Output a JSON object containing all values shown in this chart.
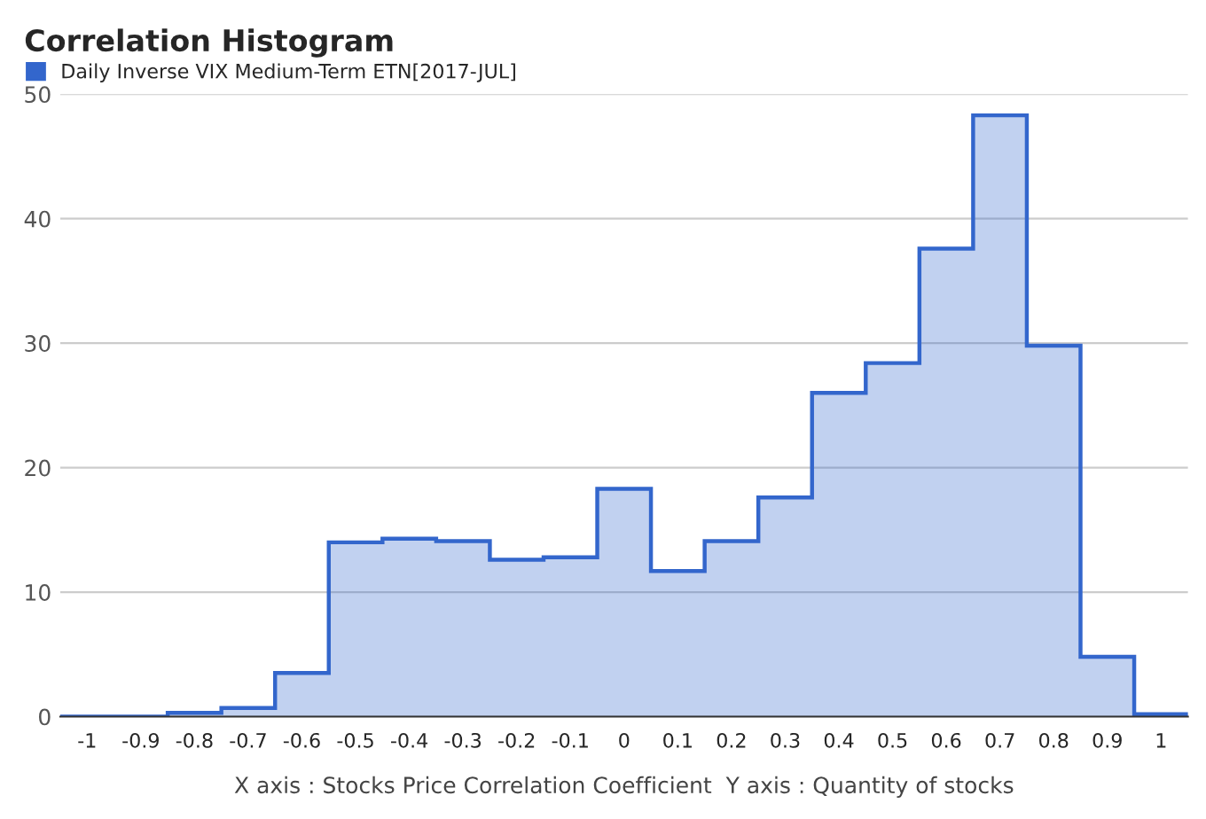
{
  "chart_data": {
    "type": "histogram",
    "title": "Correlation Histogram",
    "xlabel": "X axis : Stocks Price Correlation Coefficient  Y axis : Quantity of stocks",
    "bins": [
      -1.05,
      -0.95,
      -0.85,
      -0.75,
      -0.65,
      -0.55,
      -0.45,
      -0.35,
      -0.25,
      -0.15,
      -0.05,
      0.05,
      0.15,
      0.25,
      0.35,
      0.45,
      0.55,
      0.65,
      0.75,
      0.85,
      0.95,
      1.05
    ],
    "series": [
      {
        "name": "Daily Inverse VIX Medium-Term ETN[2017-JUL]",
        "color": "#3366cc",
        "values": [
          0,
          0,
          0.3,
          0.7,
          3.5,
          14,
          14.3,
          14.1,
          12.6,
          12.8,
          18.3,
          11.7,
          14.1,
          17.6,
          26,
          28.4,
          37.6,
          48.3,
          29.8,
          4.8,
          0.2
        ]
      }
    ],
    "xlim": [
      -1.05,
      1.05
    ],
    "ylim": [
      0,
      50
    ],
    "xticks": [
      -1,
      -0.9,
      -0.8,
      -0.7,
      -0.6,
      -0.5,
      -0.4,
      -0.3,
      -0.2,
      -0.1,
      0,
      0.1,
      0.2,
      0.3,
      0.4,
      0.5,
      0.6,
      0.7,
      0.8,
      0.9,
      1
    ],
    "yticks": [
      0,
      10,
      20,
      30,
      40,
      50
    ],
    "grid": "y",
    "legend": "top left"
  }
}
